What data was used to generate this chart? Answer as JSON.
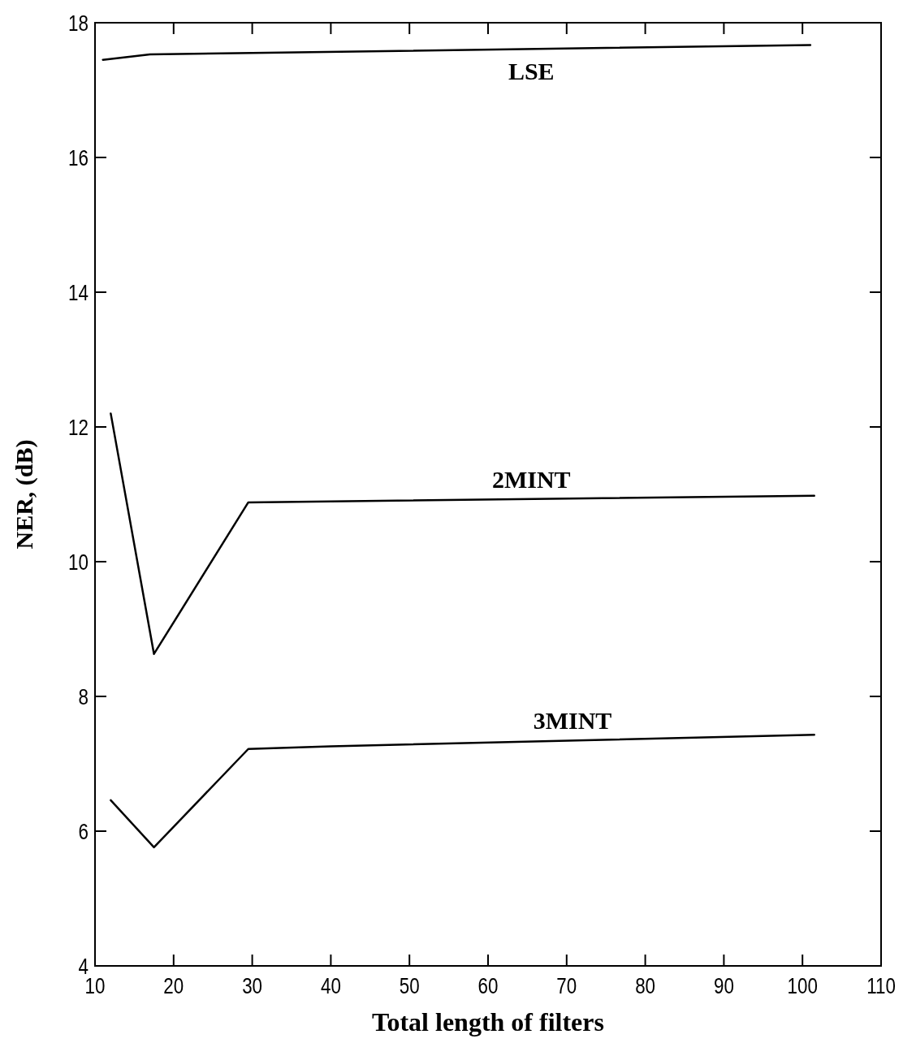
{
  "chart_data": {
    "type": "line",
    "xlabel": "Total length of filters",
    "ylabel": "NER, (dB)",
    "xlim": [
      10,
      110
    ],
    "xticks": [
      10,
      20,
      30,
      40,
      50,
      60,
      70,
      80,
      90,
      100,
      110
    ],
    "ylim": [
      4,
      18
    ],
    "yticks": [
      4,
      6,
      8,
      10,
      12,
      14,
      16,
      18
    ],
    "grid": false,
    "marker": "none",
    "line_style": "solid",
    "series": [
      {
        "name": "LSE",
        "color": "#000000",
        "x": [
          11,
          17,
          30,
          101
        ],
        "values": [
          17.45,
          17.53,
          17.55,
          17.67
        ]
      },
      {
        "name": "2MINT",
        "color": "#000000",
        "x": [
          12,
          17.5,
          29.5,
          101.5
        ],
        "values": [
          12.2,
          8.63,
          10.88,
          10.98
        ]
      },
      {
        "name": "3MINT",
        "color": "#000000",
        "x": [
          12,
          17.5,
          29.5,
          40,
          101.5
        ],
        "values": [
          6.46,
          5.76,
          7.22,
          7.26,
          7.43
        ]
      }
    ]
  }
}
